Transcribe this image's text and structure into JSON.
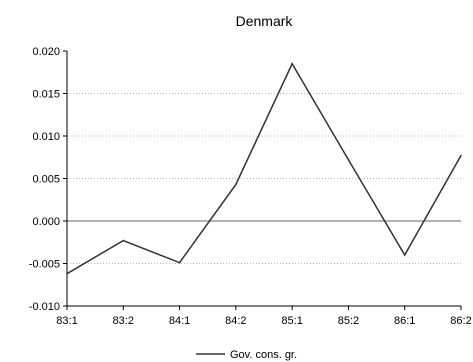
{
  "chart_data": {
    "type": "line",
    "title": "Denmark",
    "xlabel": "",
    "ylabel": "",
    "categories": [
      "83:1",
      "83:2",
      "84:1",
      "84:2",
      "85:1",
      "85:2",
      "86:1",
      "86:2"
    ],
    "series": [
      {
        "name": "Gov. cons. gr.",
        "values": [
          -0.0062,
          -0.0023,
          -0.0049,
          0.0043,
          0.0185,
          0.0072,
          -0.004,
          0.0077
        ]
      }
    ],
    "ylim": [
      -0.01,
      0.02
    ],
    "yticks": [
      "0.020",
      "0.015",
      "0.010",
      "0.005",
      "0.000",
      "-0.005",
      "-0.010"
    ],
    "grid": "horizontal dotted",
    "zero_line": true,
    "legend_position": "bottom-center",
    "colors": {
      "line": "#333333",
      "axis": "#000000",
      "grid": "#bbbbbb"
    }
  }
}
